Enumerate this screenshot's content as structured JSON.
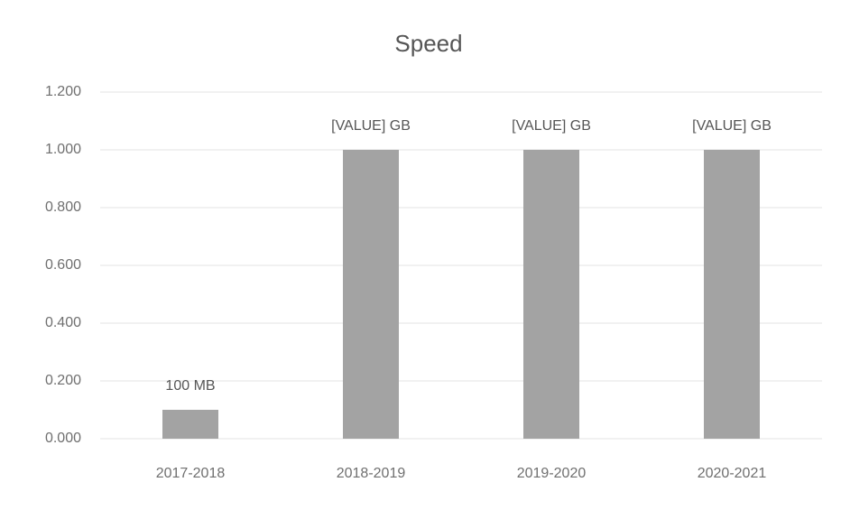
{
  "chart_data": {
    "type": "bar",
    "title": "Speed",
    "categories": [
      "2017-2018",
      "2018-2019",
      "2019-2020",
      "2020-2021"
    ],
    "values": [
      0.1,
      1,
      1,
      1
    ],
    "value_labels": [
      "100 MB",
      "[VALUE] GB",
      "[VALUE] GB",
      "[VALUE] GB"
    ],
    "color": "#a3a3a3",
    "ylim": [
      0,
      1.2
    ],
    "yticks": [
      {
        "value": 0,
        "label": "0.000"
      },
      {
        "value": 0.2,
        "label": "0.200"
      },
      {
        "value": 0.4,
        "label": "0.400"
      },
      {
        "value": 0.6,
        "label": "0.600"
      },
      {
        "value": 0.8,
        "label": "0.800"
      },
      {
        "value": 1,
        "label": "1.000"
      },
      {
        "value": 1.2,
        "label": "1.200"
      }
    ],
    "grid": true
  }
}
